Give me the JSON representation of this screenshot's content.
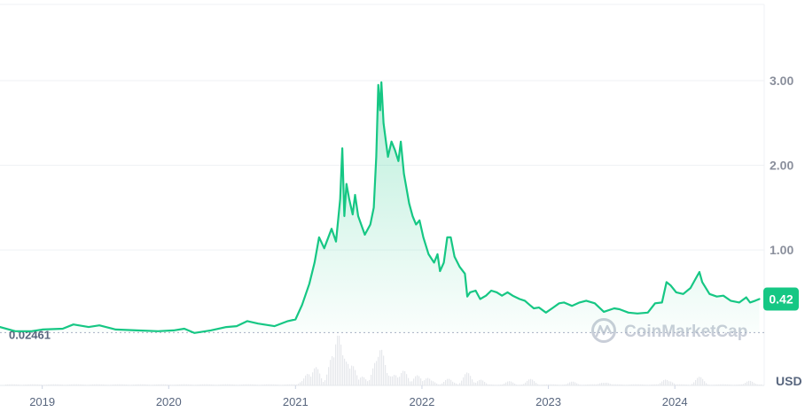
{
  "chart_data": {
    "type": "area",
    "currency_label": "USD",
    "brand_watermark": "CoinMarketCap",
    "y_ticks": [
      "1.00",
      "2.00",
      "3.00"
    ],
    "y_tick_values": [
      1,
      2,
      3
    ],
    "ylim": [
      -0.6,
      3.9
    ],
    "xlim": [
      "2018-09-01",
      "2024-09-15"
    ],
    "x_ticks": [
      {
        "label": "2019",
        "date": "2019-01-01"
      },
      {
        "label": "2020",
        "date": "2020-01-01"
      },
      {
        "label": "2021",
        "date": "2021-01-01"
      },
      {
        "label": "2022",
        "date": "2022-01-01"
      },
      {
        "label": "2023",
        "date": "2023-01-01"
      },
      {
        "label": "2024",
        "date": "2024-01-01"
      }
    ],
    "baseline": {
      "label": "0.02461",
      "value": 0.02461
    },
    "current": {
      "label": "0.42",
      "value": 0.42
    },
    "colors": {
      "line": "#16c784",
      "area_top": "#16c784",
      "current_badge": "#16c784",
      "volume": "#e6e8ec",
      "baseline": "#a6b0c3",
      "grid": "#eff2f5"
    },
    "grid": true,
    "series": [
      {
        "points": [
          [
            "2018-09-01",
            0.09
          ],
          [
            "2018-10-15",
            0.04
          ],
          [
            "2018-12-01",
            0.04
          ],
          [
            "2019-01-01",
            0.06
          ],
          [
            "2019-03-01",
            0.07
          ],
          [
            "2019-04-01",
            0.12
          ],
          [
            "2019-05-15",
            0.09
          ],
          [
            "2019-06-15",
            0.11
          ],
          [
            "2019-08-01",
            0.06
          ],
          [
            "2019-10-01",
            0.05
          ],
          [
            "2019-12-01",
            0.04
          ],
          [
            "2020-01-15",
            0.05
          ],
          [
            "2020-02-15",
            0.07
          ],
          [
            "2020-03-15",
            0.02
          ],
          [
            "2020-05-01",
            0.05
          ],
          [
            "2020-06-15",
            0.09
          ],
          [
            "2020-07-15",
            0.1
          ],
          [
            "2020-08-15",
            0.16
          ],
          [
            "2020-09-15",
            0.13
          ],
          [
            "2020-11-01",
            0.1
          ],
          [
            "2020-12-10",
            0.16
          ],
          [
            "2021-01-01",
            0.18
          ],
          [
            "2021-01-20",
            0.35
          ],
          [
            "2021-02-10",
            0.6
          ],
          [
            "2021-02-25",
            0.85
          ],
          [
            "2021-03-10",
            1.15
          ],
          [
            "2021-03-25",
            1.02
          ],
          [
            "2021-04-15",
            1.25
          ],
          [
            "2021-04-28",
            1.1
          ],
          [
            "2021-05-10",
            1.6
          ],
          [
            "2021-05-16",
            2.2
          ],
          [
            "2021-05-22",
            1.4
          ],
          [
            "2021-05-28",
            1.78
          ],
          [
            "2021-06-05",
            1.6
          ],
          [
            "2021-06-15",
            1.42
          ],
          [
            "2021-06-22",
            1.65
          ],
          [
            "2021-07-01",
            1.4
          ],
          [
            "2021-07-20",
            1.18
          ],
          [
            "2021-08-05",
            1.3
          ],
          [
            "2021-08-15",
            1.5
          ],
          [
            "2021-08-22",
            2.1
          ],
          [
            "2021-08-28",
            2.95
          ],
          [
            "2021-09-02",
            2.65
          ],
          [
            "2021-09-06",
            2.98
          ],
          [
            "2021-09-12",
            2.5
          ],
          [
            "2021-09-20",
            2.25
          ],
          [
            "2021-09-25",
            2.1
          ],
          [
            "2021-10-05",
            2.28
          ],
          [
            "2021-10-15",
            2.18
          ],
          [
            "2021-10-25",
            2.05
          ],
          [
            "2021-11-01",
            2.28
          ],
          [
            "2021-11-10",
            1.9
          ],
          [
            "2021-11-25",
            1.55
          ],
          [
            "2021-12-05",
            1.4
          ],
          [
            "2021-12-15",
            1.3
          ],
          [
            "2021-12-25",
            1.35
          ],
          [
            "2022-01-05",
            1.15
          ],
          [
            "2022-01-20",
            0.95
          ],
          [
            "2022-02-05",
            0.85
          ],
          [
            "2022-02-15",
            0.95
          ],
          [
            "2022-02-22",
            0.75
          ],
          [
            "2022-03-05",
            0.85
          ],
          [
            "2022-03-15",
            1.15
          ],
          [
            "2022-03-25",
            1.15
          ],
          [
            "2022-04-05",
            0.92
          ],
          [
            "2022-04-20",
            0.8
          ],
          [
            "2022-05-05",
            0.72
          ],
          [
            "2022-05-12",
            0.45
          ],
          [
            "2022-05-20",
            0.5
          ],
          [
            "2022-06-05",
            0.52
          ],
          [
            "2022-06-18",
            0.42
          ],
          [
            "2022-07-05",
            0.46
          ],
          [
            "2022-07-20",
            0.52
          ],
          [
            "2022-08-05",
            0.5
          ],
          [
            "2022-08-20",
            0.46
          ],
          [
            "2022-09-05",
            0.5
          ],
          [
            "2022-09-20",
            0.46
          ],
          [
            "2022-10-10",
            0.42
          ],
          [
            "2022-10-25",
            0.4
          ],
          [
            "2022-11-08",
            0.35
          ],
          [
            "2022-11-20",
            0.31
          ],
          [
            "2022-12-05",
            0.32
          ],
          [
            "2022-12-25",
            0.26
          ],
          [
            "2023-01-15",
            0.32
          ],
          [
            "2023-02-01",
            0.37
          ],
          [
            "2023-02-15",
            0.38
          ],
          [
            "2023-03-10",
            0.34
          ],
          [
            "2023-04-01",
            0.38
          ],
          [
            "2023-04-20",
            0.4
          ],
          [
            "2023-05-15",
            0.37
          ],
          [
            "2023-06-10",
            0.27
          ],
          [
            "2023-07-10",
            0.31
          ],
          [
            "2023-07-25",
            0.3
          ],
          [
            "2023-08-20",
            0.26
          ],
          [
            "2023-09-15",
            0.25
          ],
          [
            "2023-10-15",
            0.26
          ],
          [
            "2023-11-05",
            0.37
          ],
          [
            "2023-11-25",
            0.38
          ],
          [
            "2023-12-08",
            0.62
          ],
          [
            "2023-12-20",
            0.58
          ],
          [
            "2024-01-05",
            0.5
          ],
          [
            "2024-01-25",
            0.48
          ],
          [
            "2024-02-15",
            0.55
          ],
          [
            "2024-03-01",
            0.66
          ],
          [
            "2024-03-12",
            0.74
          ],
          [
            "2024-03-20",
            0.62
          ],
          [
            "2024-04-10",
            0.48
          ],
          [
            "2024-05-01",
            0.45
          ],
          [
            "2024-05-20",
            0.46
          ],
          [
            "2024-06-10",
            0.4
          ],
          [
            "2024-07-05",
            0.38
          ],
          [
            "2024-07-25",
            0.44
          ],
          [
            "2024-08-05",
            0.38
          ],
          [
            "2024-08-20",
            0.4
          ],
          [
            "2024-09-01",
            0.42
          ]
        ]
      }
    ],
    "volume_peaks": [
      [
        "2021-02-01",
        0.25
      ],
      [
        "2021-03-01",
        0.35
      ],
      [
        "2021-04-15",
        0.55
      ],
      [
        "2021-05-05",
        1.0
      ],
      [
        "2021-05-20",
        0.8
      ],
      [
        "2021-06-10",
        0.4
      ],
      [
        "2021-07-15",
        0.2
      ],
      [
        "2021-08-20",
        0.45
      ],
      [
        "2021-09-05",
        0.7
      ],
      [
        "2021-09-20",
        0.35
      ],
      [
        "2021-10-10",
        0.22
      ],
      [
        "2021-11-10",
        0.3
      ],
      [
        "2021-12-15",
        0.2
      ],
      [
        "2022-01-20",
        0.18
      ],
      [
        "2022-03-20",
        0.15
      ],
      [
        "2022-05-12",
        0.25
      ],
      [
        "2022-06-15",
        0.12
      ],
      [
        "2022-09-10",
        0.08
      ],
      [
        "2022-11-10",
        0.12
      ],
      [
        "2023-03-10",
        0.07
      ],
      [
        "2023-06-10",
        0.08
      ],
      [
        "2023-12-08",
        0.15
      ],
      [
        "2024-03-10",
        0.16
      ],
      [
        "2024-08-05",
        0.1
      ]
    ]
  }
}
